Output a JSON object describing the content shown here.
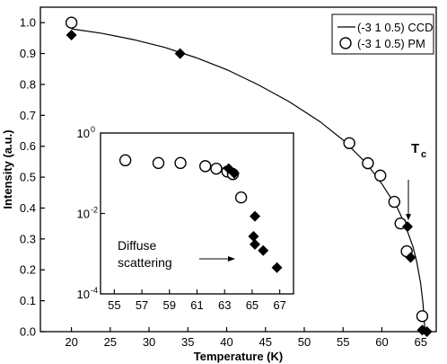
{
  "chart_data": [
    {
      "type": "scatter",
      "role": "main",
      "xlabel": "Temperature (K)",
      "ylabel": "Intensity (a.u.)",
      "xlim": [
        16,
        67
      ],
      "ylim": [
        0,
        1.05
      ],
      "x_ticks": [
        20,
        25,
        30,
        35,
        40,
        45,
        50,
        55,
        60,
        65
      ],
      "y_ticks": [
        0.0,
        0.1,
        0.2,
        0.3,
        0.4,
        0.5,
        0.6,
        0.7,
        0.8,
        0.9,
        1.0
      ],
      "y_tick_labels": [
        "0.0",
        "0.1",
        "0.2",
        "0.3",
        "0.4",
        "0.5",
        "0.6",
        "0.7",
        "0.8",
        "0.9",
        "1.0"
      ],
      "legend_position": "top-right",
      "series": [
        {
          "name": "(-3 1 0.5) CCD",
          "style": "line",
          "color": "#000000",
          "points": [
            [
              20,
              0.98
            ],
            [
              24,
              0.965
            ],
            [
              28,
              0.945
            ],
            [
              32,
              0.92
            ],
            [
              36,
              0.887
            ],
            [
              40,
              0.848
            ],
            [
              44,
              0.8
            ],
            [
              48,
              0.745
            ],
            [
              52,
              0.68
            ],
            [
              55,
              0.62
            ],
            [
              58,
              0.545
            ],
            [
              60,
              0.478
            ],
            [
              62,
              0.4
            ],
            [
              63,
              0.345
            ],
            [
              64,
              0.275
            ],
            [
              64.5,
              0.225
            ],
            [
              65,
              0.155
            ],
            [
              65.3,
              0.09
            ],
            [
              65.5,
              0.02
            ],
            [
              65.6,
              0.0
            ]
          ]
        },
        {
          "name": "(-3 1 0.5) PM",
          "style": "open-circle",
          "color": "#000000",
          "points": [
            [
              20,
              1.0
            ],
            [
              55.8,
              0.61
            ],
            [
              58.2,
              0.545
            ],
            [
              59.8,
              0.505
            ],
            [
              61.6,
              0.42
            ],
            [
              62.4,
              0.35
            ],
            [
              63.2,
              0.26
            ],
            [
              65.2,
              0.05
            ]
          ]
        },
        {
          "name": "",
          "style": "filled-diamond",
          "color": "#000000",
          "points": [
            [
              20,
              0.96
            ],
            [
              34,
              0.9
            ],
            [
              63.3,
              0.34
            ],
            [
              63.7,
              0.24
            ],
            [
              65.2,
              0.005
            ],
            [
              65.8,
              0.0
            ]
          ]
        }
      ],
      "annotations": [
        {
          "text": "T",
          "sub": "c",
          "x": 63.3,
          "y": 0.34
        }
      ]
    },
    {
      "type": "scatter",
      "role": "inset",
      "xlim": [
        54,
        68
      ],
      "ylim_log10": [
        -4,
        0
      ],
      "x_ticks": [
        55,
        57,
        59,
        61,
        63,
        65,
        67
      ],
      "y_ticks_log10": [
        0,
        -2,
        -4
      ],
      "y_tick_labels": [
        [
          "10",
          "0"
        ],
        [
          "10",
          "-2"
        ],
        [
          "10",
          "-4"
        ]
      ],
      "log_y": true,
      "series": [
        {
          "name": "(-3 1 0.5) PM",
          "style": "open-circle",
          "points": [
            [
              55.8,
              0.21
            ],
            [
              58.2,
              0.18
            ],
            [
              59.8,
              0.18
            ],
            [
              61.6,
              0.15
            ],
            [
              62.4,
              0.13
            ],
            [
              63.2,
              0.11
            ],
            [
              63.6,
              0.095
            ],
            [
              64.2,
              0.025
            ]
          ]
        },
        {
          "name": "",
          "style": "filled-diamond",
          "points": [
            [
              63.3,
              0.13
            ],
            [
              63.7,
              0.1
            ],
            [
              65.2,
              0.0085
            ],
            [
              65.1,
              0.0027
            ],
            [
              65.2,
              0.0017
            ],
            [
              65.8,
              0.0012
            ],
            [
              66.8,
              0.00045
            ]
          ]
        }
      ],
      "annotations": [
        {
          "text": "Diffuse",
          "x": 58
        },
        {
          "text": "scattering",
          "x": 58
        }
      ]
    }
  ]
}
